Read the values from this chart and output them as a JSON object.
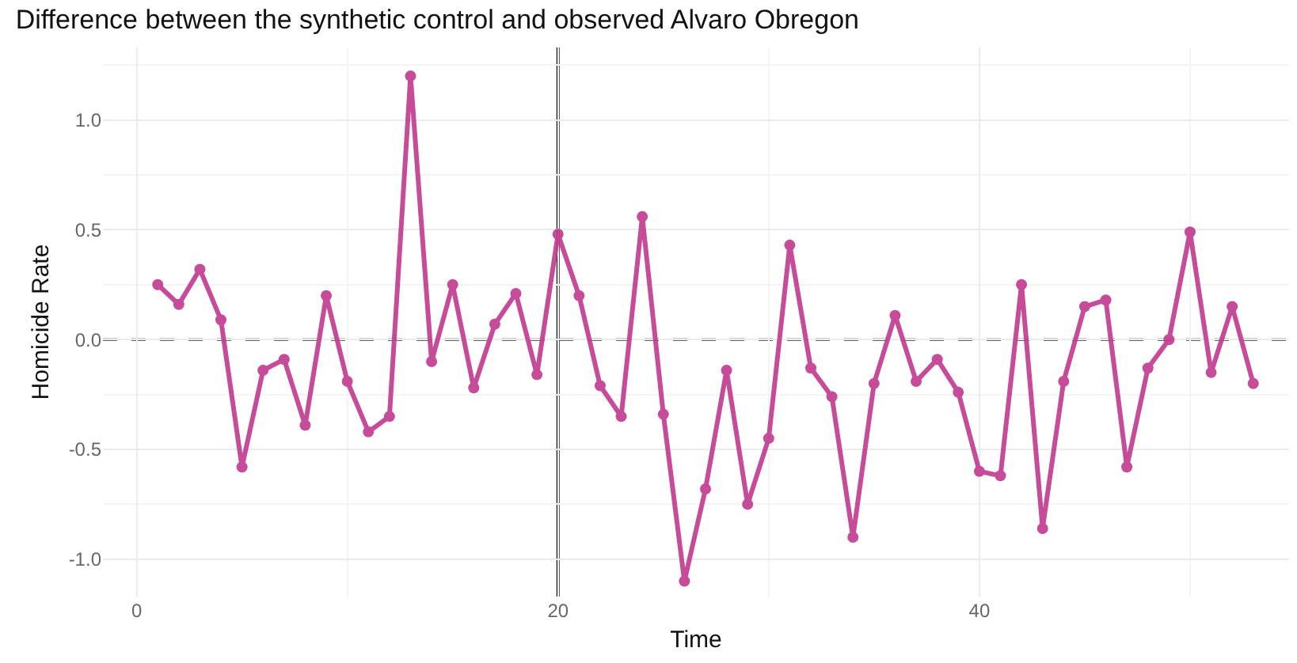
{
  "chart_data": {
    "type": "line",
    "title": "Difference between the synthetic control and observed Alvaro Obregon",
    "xlabel": "Time",
    "ylabel": "Homicide Rate",
    "x": [
      1,
      2,
      3,
      4,
      5,
      6,
      7,
      8,
      9,
      10,
      11,
      12,
      13,
      14,
      15,
      16,
      17,
      18,
      19,
      20,
      21,
      22,
      23,
      24,
      25,
      26,
      27,
      28,
      29,
      30,
      31,
      32,
      33,
      34,
      35,
      36,
      37,
      38,
      39,
      40,
      41,
      42,
      43,
      44,
      45,
      46,
      47,
      48,
      49,
      50,
      51,
      52,
      53
    ],
    "series": [
      {
        "color": "#c0398f",
        "values": [
          0.25,
          0.16,
          0.32,
          0.09,
          -0.58,
          -0.14,
          -0.09,
          -0.39,
          0.2,
          -0.19,
          -0.42,
          -0.35,
          1.2,
          -0.1,
          0.25,
          -0.22,
          0.07,
          0.21,
          -0.16,
          0.48,
          0.2,
          -0.21,
          -0.35,
          0.56,
          -0.34,
          -1.1,
          -0.68,
          -0.14,
          -0.75,
          -0.45,
          0.43,
          -0.13,
          -0.26,
          -0.9,
          -0.2,
          0.11,
          -0.19,
          -0.09,
          -0.24,
          -0.6,
          -0.62,
          0.25,
          -0.86,
          -0.19,
          0.15,
          0.18,
          -0.58,
          -0.13,
          0.0,
          0.49,
          -0.15,
          0.15,
          -0.2
        ]
      }
    ],
    "xlim": [
      -1.6,
      54.7
    ],
    "ylim": [
      -1.17,
      1.33
    ],
    "xticks": [
      0,
      20,
      40
    ],
    "yticks": [
      {
        "value": -1,
        "label": "-1.0"
      },
      {
        "value": -0.5,
        "label": "-0.5"
      },
      {
        "value": 0,
        "label": "0.0"
      },
      {
        "value": 0.5,
        "label": "0.5"
      },
      {
        "value": 1,
        "label": "1.0"
      }
    ],
    "ref_lines": [
      {
        "axis": "y",
        "value": 0,
        "color": "#333333",
        "line_style": "dashed"
      },
      {
        "axis": "x",
        "value": 20,
        "color": "#222222",
        "line_style": "solid"
      }
    ],
    "grid": true,
    "marker": "circle",
    "line_style": "solid"
  }
}
